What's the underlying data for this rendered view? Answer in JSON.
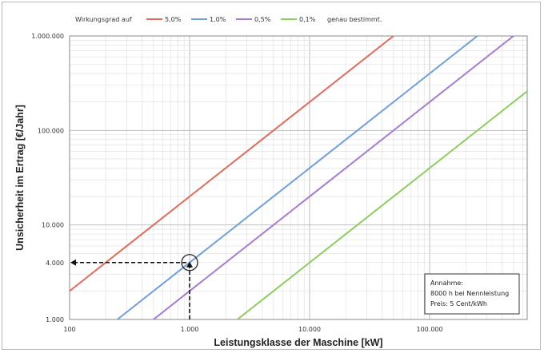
{
  "chart_data": {
    "type": "line",
    "xscale": "log",
    "yscale": "log",
    "xlim": [
      100,
      650000
    ],
    "ylim": [
      1000,
      1000000
    ],
    "xlabel": "Leistungsklasse der Maschine [kW]",
    "ylabel": "Unsicherheit im Ertrag [€/Jahr]",
    "x_ticks": [
      {
        "value": 100,
        "label": "100"
      },
      {
        "value": 1000,
        "label": "1.000"
      },
      {
        "value": 10000,
        "label": "10.000"
      },
      {
        "value": 100000,
        "label": "100.000"
      }
    ],
    "y_ticks": [
      {
        "value": 1000,
        "label": "1.000"
      },
      {
        "value": 4000,
        "label": "4.000"
      },
      {
        "value": 10000,
        "label": "10.000"
      },
      {
        "value": 100000,
        "label": "100.000"
      },
      {
        "value": 1000000,
        "label": "1.000.000"
      }
    ],
    "legend": {
      "title": "Wirkungsgrad auf",
      "suffix": "genau bestimmt.",
      "placement": "top"
    },
    "series": [
      {
        "name": "5,0%",
        "color": "#e06b5b",
        "x": [
          100,
          50000
        ],
        "y": [
          2000,
          1000000
        ]
      },
      {
        "name": "1,0%",
        "color": "#6f9fdc",
        "x": [
          250,
          250000
        ],
        "y": [
          1000,
          1000000
        ]
      },
      {
        "name": "0,5%",
        "color": "#a57cd1",
        "x": [
          500,
          500000
        ],
        "y": [
          1000,
          1000000
        ]
      },
      {
        "name": "0,1%",
        "color": "#8ccd5e",
        "x": [
          2500,
          650000
        ],
        "y": [
          1000,
          260000
        ]
      }
    ],
    "grid": true,
    "annotation": {
      "marker": {
        "x": 1000,
        "y": 4000
      },
      "lines": [
        "Annahme:",
        "8000 h bei Nennleistung",
        "Preis: 5 Cent/kWh"
      ]
    }
  }
}
